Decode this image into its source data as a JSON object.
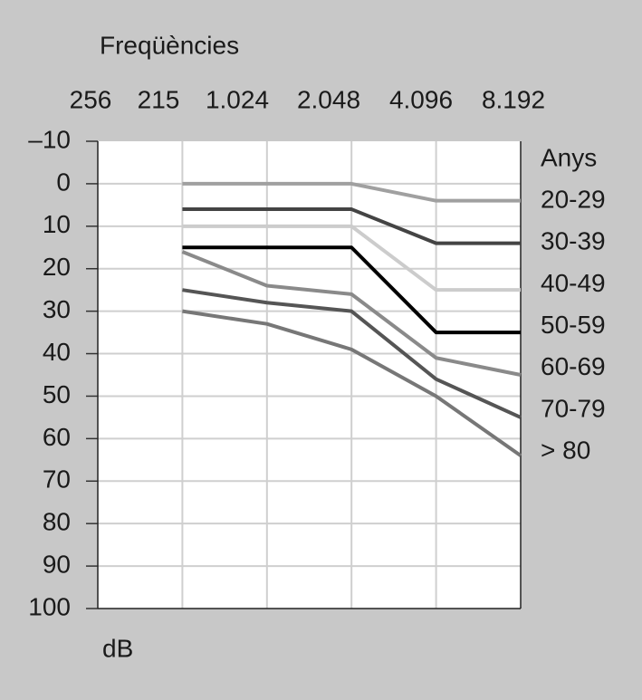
{
  "chart_data": {
    "type": "line",
    "title": "Freqüències",
    "y_label": "dB",
    "legend_title": "Anys",
    "categories": [
      "256",
      "215",
      "1.024",
      "2.048",
      "4.096",
      "8.192"
    ],
    "ylim": [
      -10,
      100
    ],
    "yticks": [
      {
        "value": -10,
        "label": "–10"
      },
      0,
      10,
      20,
      30,
      40,
      50,
      60,
      70,
      80,
      90,
      100
    ],
    "y_inverted": true,
    "grid": true,
    "series": [
      {
        "name": "20-29",
        "color": "#a0a0a0",
        "values": [
          null,
          0,
          0,
          0,
          4,
          4
        ]
      },
      {
        "name": "30-39",
        "color": "#444444",
        "values": [
          null,
          6,
          6,
          6,
          14,
          14
        ]
      },
      {
        "name": "40-49",
        "color": "#cccccc",
        "values": [
          null,
          10,
          10,
          10,
          25,
          25
        ]
      },
      {
        "name": "50-59",
        "color": "#000000",
        "values": [
          null,
          15,
          15,
          15,
          35,
          35
        ]
      },
      {
        "name": "60-69",
        "color": "#8a8a8a",
        "values": [
          null,
          16,
          24,
          26,
          41,
          45
        ]
      },
      {
        "name": "70-79",
        "color": "#555555",
        "values": [
          null,
          25,
          28,
          30,
          46,
          55
        ]
      },
      {
        "name": "> 80",
        "color": "#777777",
        "values": [
          null,
          30,
          33,
          39,
          50,
          64
        ]
      }
    ]
  }
}
